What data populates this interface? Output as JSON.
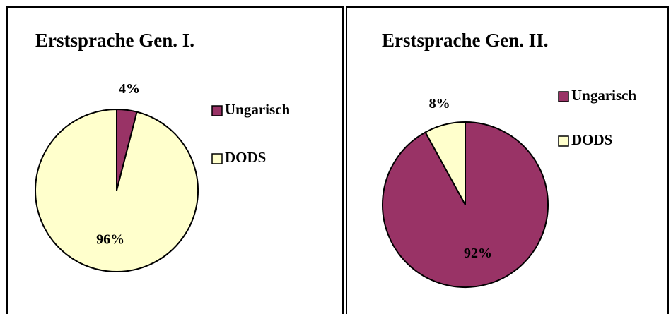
{
  "chart_data": [
    {
      "type": "pie",
      "title": "Erstsprache Gen. I.",
      "categories": [
        "Ungarisch",
        "DODS"
      ],
      "values": [
        4,
        96
      ],
      "value_labels": [
        "4%",
        "96%"
      ],
      "colors": [
        "#993366",
        "#ffffcc"
      ]
    },
    {
      "type": "pie",
      "title": "Erstsprache Gen. II.",
      "categories": [
        "Ungarisch",
        "DODS"
      ],
      "values": [
        92,
        8
      ],
      "value_labels": [
        "92%",
        "8%"
      ],
      "colors": [
        "#993366",
        "#ffffcc"
      ]
    }
  ]
}
